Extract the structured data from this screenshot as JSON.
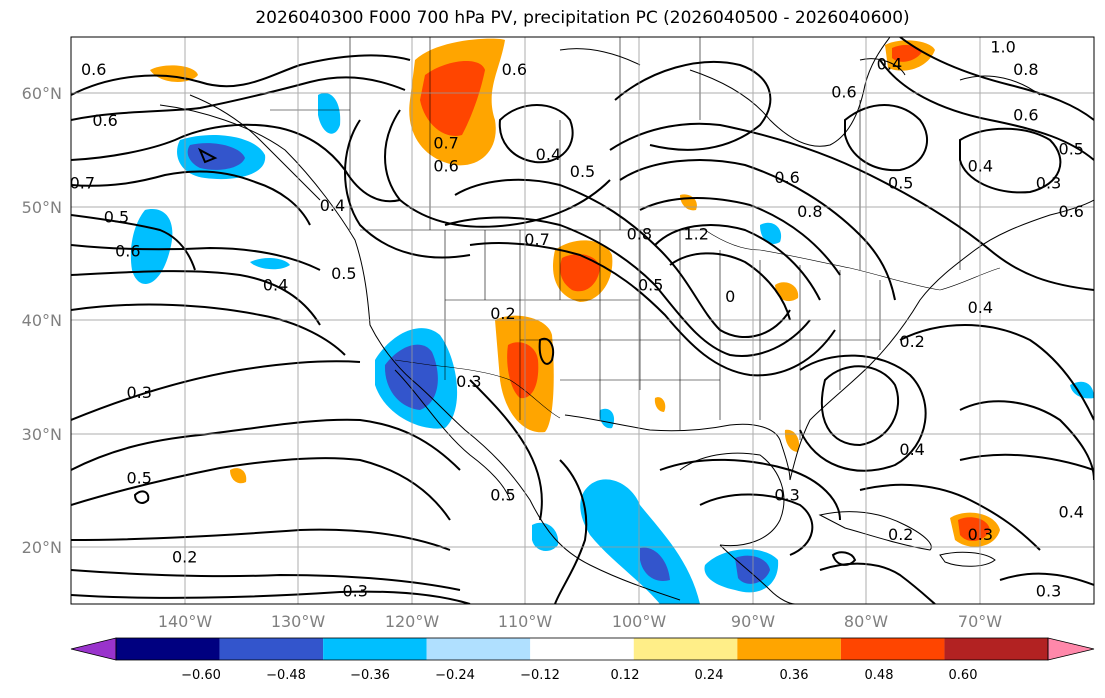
{
  "title": "2026040300 F000 700 hPa PV, precipitation PC (2026040500 - 2026040600)",
  "map": {
    "lon_range": [
      -150,
      -60
    ],
    "lat_range": [
      15,
      65
    ],
    "grid": true,
    "lat_labels": [
      "20°N",
      "30°N",
      "40°N",
      "50°N",
      "60°N"
    ],
    "lon_labels": [
      "140°W",
      "130°W",
      "120°W",
      "110°W",
      "100°W",
      "90°W",
      "80°W",
      "70°W"
    ],
    "contour_labels": [
      {
        "text": "0.6",
        "lon": -148,
        "lat": 62
      },
      {
        "text": "0.6",
        "lon": -147,
        "lat": 57.5
      },
      {
        "text": "0.7",
        "lon": -149,
        "lat": 52
      },
      {
        "text": "0.5",
        "lon": -146,
        "lat": 49
      },
      {
        "text": "0.6",
        "lon": -145,
        "lat": 46
      },
      {
        "text": "0.4",
        "lon": -127,
        "lat": 50
      },
      {
        "text": "0.5",
        "lon": -126,
        "lat": 44
      },
      {
        "text": "0.4",
        "lon": -132,
        "lat": 43
      },
      {
        "text": "0.7",
        "lon": -117,
        "lat": 55.5
      },
      {
        "text": "0.6",
        "lon": -117,
        "lat": 53.5
      },
      {
        "text": "0.6",
        "lon": -111,
        "lat": 62
      },
      {
        "text": "0.4",
        "lon": -108,
        "lat": 54.5
      },
      {
        "text": "0.5",
        "lon": -105,
        "lat": 53
      },
      {
        "text": "0.7",
        "lon": -109,
        "lat": 47
      },
      {
        "text": "0.8",
        "lon": -100,
        "lat": 47.5
      },
      {
        "text": "1.2",
        "lon": -95,
        "lat": 47.5
      },
      {
        "text": "0.5",
        "lon": -99,
        "lat": 43
      },
      {
        "text": "0.2",
        "lon": -112,
        "lat": 40.5
      },
      {
        "text": "0.3",
        "lon": -115,
        "lat": 34.5
      },
      {
        "text": "0.3",
        "lon": -144,
        "lat": 33.5
      },
      {
        "text": "0.5",
        "lon": -144,
        "lat": 26
      },
      {
        "text": "0.2",
        "lon": -140,
        "lat": 19
      },
      {
        "text": "0.3",
        "lon": -125,
        "lat": 16
      },
      {
        "text": "0.5",
        "lon": -112,
        "lat": 24.5
      },
      {
        "text": "0.3",
        "lon": -87,
        "lat": 24.5
      },
      {
        "text": "0.6",
        "lon": -87,
        "lat": 52.5
      },
      {
        "text": "0.8",
        "lon": -85,
        "lat": 49.5
      },
      {
        "text": "0",
        "lon": -92,
        "lat": 42
      },
      {
        "text": "0.6",
        "lon": -82,
        "lat": 60
      },
      {
        "text": "0.4",
        "lon": -78,
        "lat": 62.5
      },
      {
        "text": "0.4",
        "lon": -70,
        "lat": 53.5
      },
      {
        "text": "0.5",
        "lon": -77,
        "lat": 52
      },
      {
        "text": "0.4",
        "lon": -70,
        "lat": 41
      },
      {
        "text": "0.2",
        "lon": -76,
        "lat": 38
      },
      {
        "text": "0.4",
        "lon": -76,
        "lat": 28.5
      },
      {
        "text": "0.2",
        "lon": -77,
        "lat": 21
      },
      {
        "text": "0.3",
        "lon": -70,
        "lat": 21
      },
      {
        "text": "1.0",
        "lon": -68,
        "lat": 64
      },
      {
        "text": "0.8",
        "lon": -66,
        "lat": 62
      },
      {
        "text": "0.6",
        "lon": -66,
        "lat": 58
      },
      {
        "text": "0.5",
        "lon": -62,
        "lat": 55
      },
      {
        "text": "0.3",
        "lon": -64,
        "lat": 52
      },
      {
        "text": "0.4",
        "lon": -62,
        "lat": 23
      },
      {
        "text": "0.3",
        "lon": -64,
        "lat": 16
      },
      {
        "text": "0.6",
        "lon": -62,
        "lat": 49.5
      }
    ]
  },
  "colorbar": {
    "ticks": [
      "−0.60",
      "−0.48",
      "−0.36",
      "−0.24",
      "−0.12",
      "0.12",
      "0.24",
      "0.36",
      "0.48",
      "0.60"
    ],
    "colors": [
      "#9933cc",
      "#000080",
      "#3355cc",
      "#00bfff",
      "#b0e0ff",
      "#ffffff",
      "#ffee88",
      "#ffa500",
      "#ff4500",
      "#b22222",
      "#ff88aa"
    ]
  }
}
